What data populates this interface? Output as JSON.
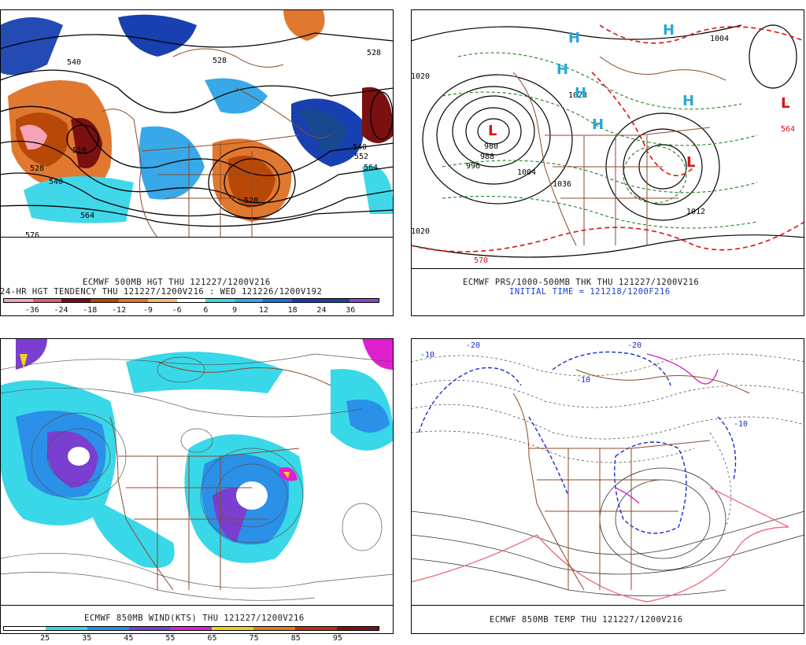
{
  "panels": {
    "top_left": {
      "title_line1": "ECMWF 500MB HGT THU 121227/1200V216",
      "title_line2": "24-HR HGT TENDENCY THU 121227/1200V216 : WED 121226/1200V192",
      "contour_labels": [
        "516",
        "528",
        "540",
        "564",
        "576",
        "528",
        "540",
        "552",
        "564",
        "528",
        "540",
        "528"
      ],
      "colorbar": {
        "colors": [
          "#f5a3b4",
          "#e06070",
          "#7a1010",
          "#b84808",
          "#e07830",
          "#f5b87a",
          "#ffffff",
          "#40d8e8",
          "#38a8e8",
          "#2070d8",
          "#1840b0",
          "#184890",
          "#8a4ac8"
        ],
        "labels": [
          "-36",
          "-24",
          "-18",
          "-12",
          "-9",
          "-6",
          "6",
          "9",
          "12",
          "18",
          "24",
          "36"
        ]
      }
    },
    "top_right": {
      "title_line1": "ECMWF PRS/1000-500MB THK THU 121227/1200V216",
      "title_line2": "INITIAL TIME = 121218/1200F216",
      "pressure_labels": [
        "980",
        "988",
        "996",
        "1004",
        "1012",
        "1020",
        "1028",
        "1036",
        "1012",
        "1020",
        "1004"
      ],
      "thickness_labels": [
        "570",
        "564"
      ],
      "high_marker": "H",
      "low_marker": "L"
    },
    "bottom_left": {
      "title_line1": "ECMWF 850MB WIND(KTS) THU 121227/1200V216",
      "colorbar": {
        "colors": [
          "#ffffff",
          "#38d8e8",
          "#2a90e8",
          "#7a3ed0",
          "#e020d0",
          "#f0d020",
          "#e08020",
          "#c03010",
          "#801010"
        ],
        "labels": [
          "25",
          "35",
          "45",
          "55",
          "65",
          "75",
          "85",
          "95"
        ]
      }
    },
    "bottom_right": {
      "title_line1": "ECMWF 850MB TEMP THU 121227/1200V216",
      "temp_labels": [
        "-10",
        "-20",
        "-10",
        "-10",
        "-20"
      ]
    }
  },
  "colors": {
    "map_lines": "#8b4a2b",
    "contour": "#000000",
    "thickness_dash": "#e01010",
    "thickness_dash_green": "#208020",
    "high_color": "#28a8d8",
    "low_color": "#e01010",
    "cold_dash": "#1a2ad0",
    "warm_line": "#f07080",
    "freeze_line": "#d020c8"
  }
}
